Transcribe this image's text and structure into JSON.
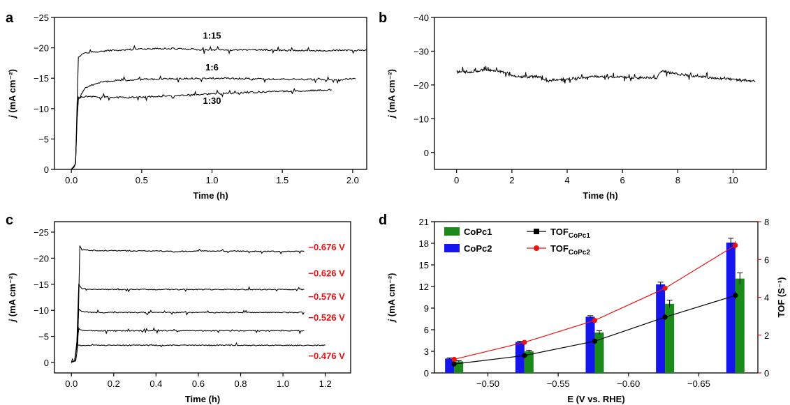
{
  "figure": {
    "panels": [
      "a",
      "b",
      "c",
      "d"
    ]
  },
  "colors": {
    "axis": "#000000",
    "curve": "#000000",
    "red": "#ee1111",
    "blue": "#1515ee",
    "green": "#1a8a1a"
  },
  "chart_data": [
    {
      "panel": "a",
      "type": "line",
      "xlabel": "Time (h)",
      "ylabel": "j (mA cm⁻²)",
      "xlim": [
        -0.12,
        2.1
      ],
      "ylim": [
        0,
        -25
      ],
      "xticks": [
        0,
        0.5,
        1.0,
        1.5,
        2.0
      ],
      "xtick_labels": [
        "0.0",
        "0.5",
        "1.0",
        "1.5",
        "2.0"
      ],
      "yticks": [
        0,
        -5,
        -10,
        -15,
        -20,
        -25
      ],
      "ytick_labels": [
        "0",
        "−5",
        "−10",
        "−15",
        "−20",
        "−25"
      ],
      "series": [
        {
          "name": "1:15",
          "x": [
            0,
            0.02,
            0.03,
            0.04,
            0.05,
            0.08,
            0.15,
            0.3,
            0.5,
            0.7,
            0.9,
            1.1,
            1.3,
            1.5,
            1.7,
            1.9,
            2.1
          ],
          "y": [
            0,
            -0.5,
            -1,
            -10,
            -18.5,
            -19,
            -19.3,
            -19.6,
            -19.8,
            -19.9,
            -19.7,
            -19.6,
            -19.7,
            -19.6,
            -19.5,
            -19.6,
            -19.6
          ]
        },
        {
          "name": "1:6",
          "x": [
            0,
            0.02,
            0.03,
            0.04,
            0.05,
            0.1,
            0.2,
            0.3,
            0.5,
            0.7,
            1.0,
            1.3,
            1.6,
            1.9,
            2.02
          ],
          "y": [
            0,
            -0.5,
            -1,
            -8,
            -11.5,
            -13.5,
            -14.3,
            -14.6,
            -14.8,
            -14.9,
            -15.0,
            -14.9,
            -14.8,
            -14.8,
            -14.9
          ]
        },
        {
          "name": "1:30",
          "x": [
            0,
            0.02,
            0.03,
            0.04,
            0.05,
            0.1,
            0.2,
            0.4,
            0.6,
            0.8,
            1.0,
            1.2,
            1.4,
            1.6,
            1.85
          ],
          "y": [
            0,
            -0.5,
            -1,
            -8,
            -11.8,
            -12.0,
            -11.9,
            -11.8,
            -12.0,
            -12.2,
            -12.4,
            -12.6,
            -12.8,
            -12.9,
            -13.1
          ]
        }
      ],
      "annotations": [
        {
          "text": "1:15",
          "x": 1.0,
          "y": -21.5
        },
        {
          "text": "1:6",
          "x": 1.0,
          "y": -16.3
        },
        {
          "text": "1:30",
          "x": 1.0,
          "y": -10.8
        }
      ]
    },
    {
      "panel": "b",
      "type": "line",
      "xlabel": "Time (h)",
      "ylabel": "j (mA cm⁻²)",
      "xlim": [
        -0.8,
        11.2
      ],
      "ylim": [
        5,
        -40
      ],
      "xticks": [
        0,
        2,
        4,
        6,
        8,
        10
      ],
      "xtick_labels": [
        "0",
        "2",
        "4",
        "6",
        "8",
        "10"
      ],
      "yticks": [
        0,
        -10,
        -20,
        -30,
        -40
      ],
      "ytick_labels": [
        "0",
        "−10",
        "−20",
        "−30",
        "−40"
      ],
      "series": [
        {
          "name": "",
          "x": [
            0,
            0.5,
            1.0,
            1.5,
            1.8,
            2.0,
            2.5,
            3.0,
            3.3,
            3.5,
            4.0,
            5.0,
            6.0,
            6.5,
            7.0,
            7.2,
            7.4,
            8.0,
            9.0,
            10.0,
            10.8
          ],
          "y": [
            -24.0,
            -23.8,
            -24.5,
            -24.2,
            -23.5,
            -22.6,
            -22.4,
            -22.5,
            -21.0,
            -21.5,
            -21.8,
            -22.5,
            -22.3,
            -22.0,
            -22.2,
            -21.8,
            -24.2,
            -23.2,
            -22.3,
            -21.6,
            -21.2
          ]
        }
      ]
    },
    {
      "panel": "c",
      "type": "line",
      "xlabel": "Time (h)",
      "ylabel": "j (mA cm⁻²)",
      "xlim": [
        -0.08,
        1.32
      ],
      "ylim": [
        2,
        -27
      ],
      "xticks": [
        0,
        0.2,
        0.4,
        0.6,
        0.8,
        1.0,
        1.2
      ],
      "xtick_labels": [
        "0.0",
        "0.2",
        "0.4",
        "0.6",
        "0.8",
        "1.0",
        "1.2"
      ],
      "yticks": [
        0,
        -5,
        -10,
        -15,
        -20,
        -25
      ],
      "ytick_labels": [
        "0",
        "−5",
        "−10",
        "−15",
        "−20",
        "−25"
      ],
      "series": [
        {
          "name": "−0.676 V",
          "x": [
            0,
            0.02,
            0.03,
            0.04,
            0.05,
            0.1,
            0.3,
            0.5,
            0.7,
            0.9,
            1.1
          ],
          "y": [
            0,
            -0.3,
            -3,
            -22.5,
            -21.6,
            -21.5,
            -21.4,
            -21.3,
            -21.4,
            -21.3,
            -21.3
          ]
        },
        {
          "name": "−0.626 V",
          "x": [
            0,
            0.015,
            0.025,
            0.035,
            0.05,
            0.1,
            0.3,
            0.5,
            0.7,
            0.9,
            1.1
          ],
          "y": [
            0,
            -0.3,
            -3,
            -15,
            -14.2,
            -14.0,
            -14.0,
            -14.0,
            -14.0,
            -14.0,
            -14.0
          ]
        },
        {
          "name": "−0.576 V",
          "x": [
            0,
            0.015,
            0.025,
            0.035,
            0.05,
            0.1,
            0.3,
            0.5,
            0.7,
            0.9,
            1.1
          ],
          "y": [
            0,
            -0.3,
            -3,
            -10.3,
            -9.8,
            -9.6,
            -9.6,
            -9.6,
            -9.6,
            -9.6,
            -9.6
          ]
        },
        {
          "name": "−0.526 V",
          "x": [
            0,
            0.015,
            0.025,
            0.035,
            0.05,
            0.1,
            0.3,
            0.5,
            0.7,
            0.9,
            1.1
          ],
          "y": [
            0,
            -0.3,
            -3,
            -6.5,
            -6.2,
            -6.1,
            -6.1,
            -6.1,
            -6.1,
            -6.1,
            -6.1
          ]
        },
        {
          "name": "−0.476 V",
          "x": [
            0,
            0.015,
            0.025,
            0.035,
            0.05,
            0.1,
            0.3,
            0.5,
            0.7,
            0.9,
            1.1,
            1.2
          ],
          "y": [
            0,
            -0.3,
            -3.4,
            -3.3,
            -3.3,
            -3.3,
            -3.3,
            -3.3,
            -3.3,
            -3.3,
            -3.3,
            -3.3
          ]
        }
      ],
      "annotations": [
        {
          "text": "−0.676 V",
          "x": 1.12,
          "y": -21.5
        },
        {
          "text": "−0.626 V",
          "x": 1.12,
          "y": -16.5
        },
        {
          "text": "−0.576 V",
          "x": 1.12,
          "y": -12.0
        },
        {
          "text": "−0.526 V",
          "x": 1.12,
          "y": -8.0
        },
        {
          "text": "−0.476 V",
          "x": 1.12,
          "y": -0.7
        }
      ]
    },
    {
      "panel": "d",
      "type": "bar",
      "xlabel": "E (V vs. RHE)",
      "ylabel": "j (mA cm⁻²)",
      "y2label": "TOF (S⁻¹)",
      "xlim": [
        -0.462,
        -0.692
      ],
      "ylim": [
        0,
        21
      ],
      "y2lim": [
        0,
        8
      ],
      "xticks": [
        -0.5,
        -0.55,
        -0.6,
        -0.65
      ],
      "xtick_labels": [
        "−0.50",
        "−0.55",
        "−0.60",
        "−0.65"
      ],
      "yticks": [
        0,
        3,
        6,
        9,
        12,
        15,
        18,
        21
      ],
      "ytick_labels": [
        "0",
        "3",
        "6",
        "9",
        "12",
        "15",
        "18",
        "21"
      ],
      "y2ticks": [
        0,
        2,
        4,
        6,
        8
      ],
      "y2tick_labels": [
        "0",
        "2",
        "4",
        "6",
        "8"
      ],
      "categories": [
        -0.476,
        -0.526,
        -0.576,
        -0.626,
        -0.676
      ],
      "series": [
        {
          "name": "CoPc1",
          "kind": "bar",
          "values": [
            1.6,
            3.0,
            5.6,
            9.6,
            13.1
          ],
          "errors": [
            0.1,
            0.15,
            0.25,
            0.5,
            0.8
          ]
        },
        {
          "name": "CoPc2",
          "kind": "bar",
          "values": [
            2.0,
            4.3,
            7.8,
            12.3,
            18.1
          ],
          "errors": [
            0.08,
            0.1,
            0.15,
            0.3,
            0.6
          ]
        },
        {
          "name": "TOF_CoPc1",
          "kind": "line",
          "axis": "right",
          "values": [
            0.47,
            0.92,
            1.68,
            2.95,
            4.1
          ],
          "errors": [
            0.05,
            0.05,
            0.08,
            0.15,
            0.2
          ]
        },
        {
          "name": "TOF_CoPc2",
          "kind": "line",
          "axis": "right",
          "values": [
            0.72,
            1.62,
            2.78,
            4.48,
            6.75
          ],
          "errors": [
            0.05,
            0.05,
            0.08,
            0.12,
            0.22
          ]
        }
      ],
      "legend": [
        {
          "label": "CoPc1",
          "marker": "bar"
        },
        {
          "label": "CoPc2",
          "marker": "bar"
        },
        {
          "label": "TOF",
          "sub": "CoPc1",
          "marker": "line"
        },
        {
          "label": "TOF",
          "sub": "CoPc2",
          "marker": "line"
        }
      ]
    }
  ]
}
